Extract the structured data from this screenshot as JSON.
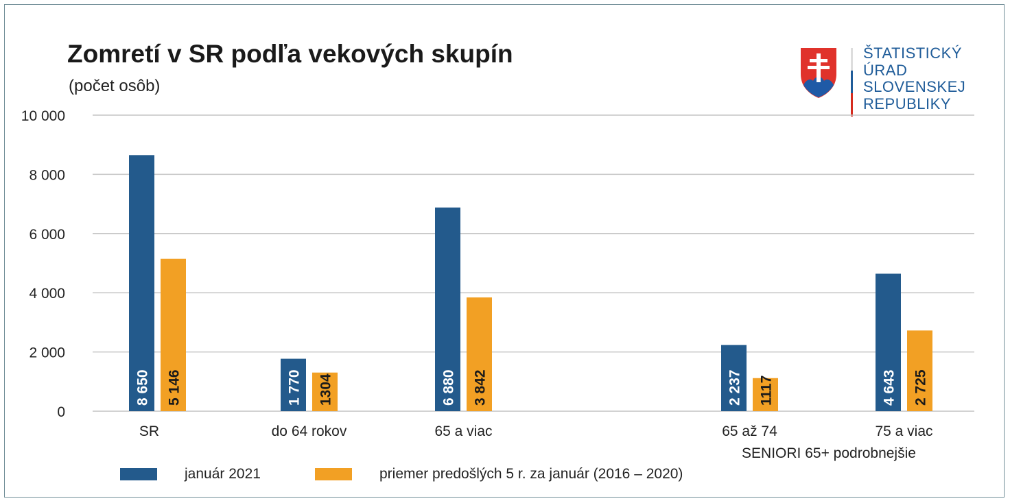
{
  "chart_data": {
    "type": "bar",
    "title": "Zomretí v SR podľa vekových skupín",
    "subtitle": "(počet osôb)",
    "categories": [
      "SR",
      "do 64 rokov",
      "65 a viac",
      "65 až 74",
      "75 a viac"
    ],
    "group_label": "SENIORI 65+ podrobnejšie",
    "series": [
      {
        "name": "január 2021",
        "color": "#235a8c",
        "values": [
          8650,
          1770,
          6880,
          2237,
          4643
        ],
        "labels": [
          "8 650",
          "1 770",
          "6 880",
          "2 237",
          "4 643"
        ]
      },
      {
        "name": "priemer predošlých 5 r. za január (2016 – 2020)",
        "color": "#f2a024",
        "values": [
          5146,
          1304,
          3842,
          1117,
          2725
        ],
        "labels": [
          "5 146",
          "1304",
          "3 842",
          "1117",
          "2 725"
        ]
      }
    ],
    "ylim": [
      0,
      10000
    ],
    "yticks": [
      0,
      2000,
      4000,
      6000,
      8000,
      10000
    ],
    "ytick_labels": [
      "0",
      "2 000",
      "4 000",
      "6 000",
      "8 000",
      "10 000"
    ],
    "grid": true,
    "legend": "bottom"
  },
  "logo": {
    "lines": [
      "ŠTATISTICKÝ",
      "ÚRAD",
      "SLOVENSKEJ",
      "REPUBLIKY"
    ]
  }
}
